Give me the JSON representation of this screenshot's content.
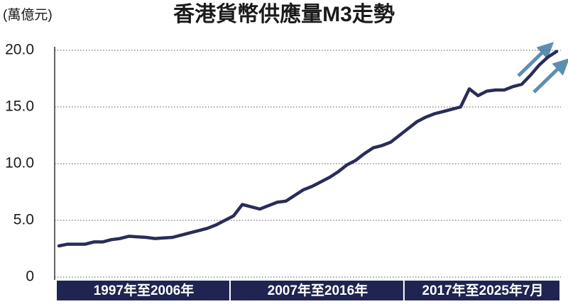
{
  "chart_data": {
    "type": "line",
    "title": "香港貨幣供應量M3走勢",
    "unit_label": "(萬億元)",
    "periods": [
      "1997年至2006年",
      "2007年至2016年",
      "2017年至2025年7月"
    ],
    "series": [
      {
        "color": "#2a2c58",
        "values": [
          2.75,
          2.9,
          2.9,
          2.9,
          3.1,
          3.1,
          3.3,
          3.4,
          3.6,
          3.55,
          3.5,
          3.4,
          3.45,
          3.5,
          3.7,
          3.9,
          4.1,
          4.3,
          4.6,
          5.0,
          5.4,
          6.4,
          6.2,
          6.0,
          6.3,
          6.6,
          6.7,
          7.2,
          7.7,
          8.0,
          8.4,
          8.8,
          9.3,
          9.9,
          10.3,
          10.9,
          11.4,
          11.6,
          11.9,
          12.5,
          13.1,
          13.7,
          14.1,
          14.4,
          14.6,
          14.8,
          15.0,
          16.6,
          16.0,
          16.4,
          16.5,
          16.5,
          16.8,
          17.0,
          17.8,
          18.7,
          19.4,
          19.9
        ]
      }
    ],
    "ylim": [
      0,
      20
    ],
    "yticks": [
      0,
      {
        "value": 5,
        "label": "5.0"
      },
      {
        "value": 10,
        "label": "10.0"
      },
      {
        "value": 15,
        "label": "15.0"
      },
      {
        "value": 20,
        "label": "20.0"
      }
    ],
    "grid": true
  }
}
